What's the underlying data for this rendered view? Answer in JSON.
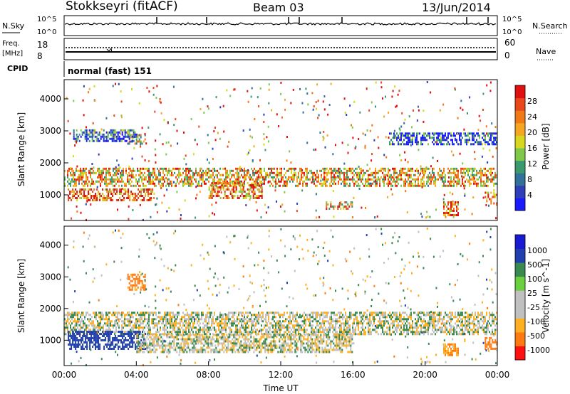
{
  "header": {
    "station": "Stokkseyri (fitACF)",
    "beam": "Beam 03",
    "date": "13/Jun/2014"
  },
  "status_panels": {
    "nsky_label": "N.Sky",
    "nsearch_label": "N.Search",
    "nsky_ticks": [
      "10^5",
      "10^0"
    ],
    "nsearch_ticks": [
      "10^5",
      "10^0"
    ],
    "freq_label_1": "Freq.",
    "freq_label_2": "[MHz]",
    "freq_ticks": [
      "18",
      "8"
    ],
    "nave_label": "Nave",
    "nave_ticks": [
      "60",
      "0"
    ],
    "cpid_label": "CPID",
    "cpid_text": "normal (fast) 151"
  },
  "colors": {
    "power_scale": [
      "#1a1aff",
      "#2e3fb8",
      "#33709a",
      "#3a9a6e",
      "#7fc94a",
      "#d7d71f",
      "#f5a623",
      "#f07a18",
      "#e8481a",
      "#e01010"
    ],
    "velocity_scale": [
      "#ff1010",
      "#ff7a10",
      "#ffb020",
      "#c0c0c0",
      "#c0c0c0",
      "#6ad040",
      "#3a8a50",
      "#2040b0",
      "#1a1ad0"
    ]
  },
  "chart_data": [
    {
      "type": "heatmap",
      "ylabel": "Slant Range [km]",
      "ylim": [
        200,
        4600
      ],
      "yticks": [
        "1000",
        "2000",
        "3000",
        "4000"
      ],
      "xlim": [
        0,
        24
      ],
      "colorbar": {
        "label": "Power [dB]",
        "range": [
          0,
          32
        ],
        "ticks": [
          "4",
          "8",
          "12",
          "16",
          "20",
          "24",
          "28"
        ]
      },
      "bands": [
        {
          "t": [
            0,
            24
          ],
          "r": [
            1300,
            1850
          ],
          "value": 20
        },
        {
          "t": [
            0.2,
            5
          ],
          "r": [
            800,
            1200
          ],
          "value": 26
        },
        {
          "t": [
            3.5,
            4.5
          ],
          "r": [
            2600,
            2900
          ],
          "value": 16
        },
        {
          "t": [
            0.5,
            4
          ],
          "r": [
            2700,
            3050
          ],
          "value": 6
        },
        {
          "t": [
            8,
            11
          ],
          "r": [
            900,
            1400
          ],
          "value": 24
        },
        {
          "t": [
            14.5,
            16
          ],
          "r": [
            550,
            800
          ],
          "value": 20
        },
        {
          "t": [
            21,
            21.8
          ],
          "r": [
            350,
            800
          ],
          "value": 26
        },
        {
          "t": [
            23.3,
            24
          ],
          "r": [
            700,
            1100
          ],
          "value": 24
        },
        {
          "t": [
            18,
            24
          ],
          "r": [
            2600,
            2950
          ],
          "value": 6
        }
      ]
    },
    {
      "type": "heatmap",
      "ylabel": "Slant Range [km]",
      "xlabel": "Time UT",
      "ylim": [
        200,
        4600
      ],
      "yticks": [
        "1000",
        "2000",
        "3000",
        "4000"
      ],
      "xlim": [
        0,
        24
      ],
      "xticks": [
        "00:00",
        "04:00",
        "08:00",
        "12:00",
        "16:00",
        "20:00",
        "00:00"
      ],
      "colorbar": {
        "label": "Velocity [m s^-1]",
        "ticks": [
          "1000",
          "500",
          "100",
          "25",
          "-25",
          "-100",
          "-500",
          "-1000"
        ]
      },
      "bands": [
        {
          "t": [
            0,
            24
          ],
          "r": [
            1200,
            1900
          ],
          "value": 0
        },
        {
          "t": [
            0.2,
            4.5
          ],
          "r": [
            700,
            1300
          ],
          "value": 400
        },
        {
          "t": [
            3.5,
            4.5
          ],
          "r": [
            2600,
            3100
          ],
          "value": -300
        },
        {
          "t": [
            23.3,
            24
          ],
          "r": [
            700,
            1100
          ],
          "value": -500
        },
        {
          "t": [
            21,
            21.8
          ],
          "r": [
            500,
            900
          ],
          "value": -200
        },
        {
          "t": [
            4,
            16
          ],
          "r": [
            600,
            1200
          ],
          "value": 0
        }
      ]
    }
  ]
}
